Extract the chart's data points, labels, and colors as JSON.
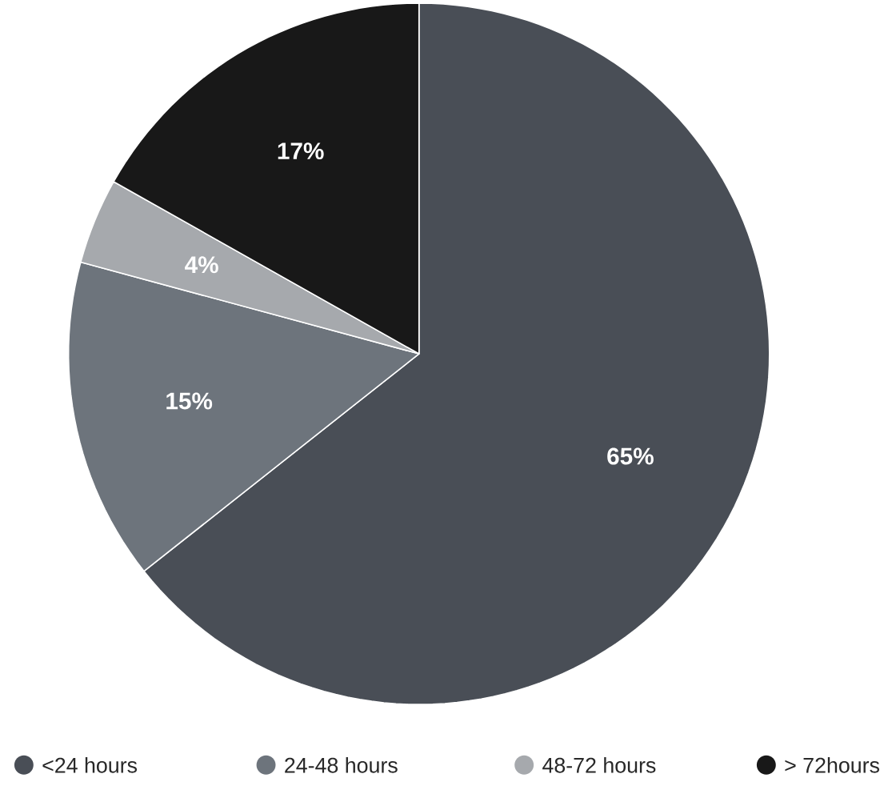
{
  "chart_data": {
    "type": "pie",
    "categories": [
      "<24 hours",
      "24-48 hours",
      "48-72 hours",
      "> 72hours"
    ],
    "values": [
      65,
      15,
      4,
      17
    ],
    "colors": [
      "#494e56",
      "#6d747c",
      "#a6a9ad",
      "#181818"
    ],
    "value_labels": [
      "65%",
      "15%",
      "4%",
      "17%"
    ],
    "legend": "bottom"
  }
}
